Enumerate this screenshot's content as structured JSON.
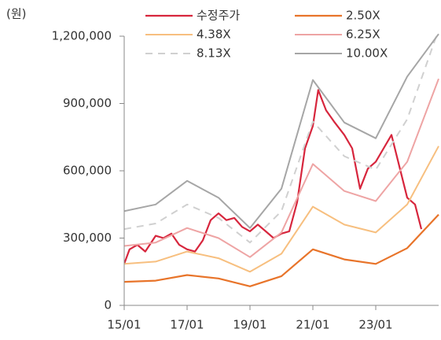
{
  "chart_data": {
    "type": "line",
    "y_label": "(원)",
    "xlim": [
      2015,
      2025
    ],
    "xticks": [
      {
        "value": 2015,
        "label": "15/01"
      },
      {
        "value": 2017,
        "label": "17/01"
      },
      {
        "value": 2019,
        "label": "19/01"
      },
      {
        "value": 2021,
        "label": "21/01"
      },
      {
        "value": 2023,
        "label": "23/01"
      }
    ],
    "ylim": [
      0,
      1200000
    ],
    "yticks": [
      0,
      {
        "value": 300000,
        "label": "300,000"
      },
      {
        "value": 600000,
        "label": "600,000"
      },
      {
        "value": 900000,
        "label": "900,000"
      },
      {
        "value": 1200000,
        "label": "1,200,000"
      }
    ],
    "series": [
      {
        "name": "수정주가",
        "color": "#d7263d",
        "width": 2.2,
        "style": "solid",
        "x": [
          2015.0,
          2015.17,
          2015.42,
          2015.67,
          2016.0,
          2016.25,
          2016.5,
          2016.75,
          2017.0,
          2017.25,
          2017.5,
          2017.75,
          2018.0,
          2018.25,
          2018.5,
          2018.75,
          2019.0,
          2019.25,
          2019.5,
          2019.75,
          2020.0,
          2020.25,
          2020.5,
          2020.75,
          2021.0,
          2021.17,
          2021.42,
          2021.67,
          2022.0,
          2022.25,
          2022.5,
          2022.75,
          2023.0,
          2023.25,
          2023.5,
          2023.75,
          2024.0,
          2024.25,
          2024.45
        ],
        "values": [
          185000,
          250000,
          270000,
          240000,
          310000,
          300000,
          320000,
          270000,
          250000,
          240000,
          290000,
          380000,
          410000,
          380000,
          390000,
          350000,
          330000,
          360000,
          330000,
          300000,
          320000,
          330000,
          460000,
          700000,
          800000,
          960000,
          870000,
          820000,
          760000,
          700000,
          520000,
          610000,
          640000,
          700000,
          760000,
          620000,
          480000,
          450000,
          340000
        ]
      },
      {
        "name": "2.50X",
        "color": "#e8742a",
        "width": 2.2,
        "style": "solid",
        "x": [
          2015,
          2016,
          2017,
          2018,
          2019,
          2020,
          2021,
          2022,
          2023,
          2024,
          2025
        ],
        "values": [
          105000,
          110000,
          135000,
          120000,
          85000,
          130000,
          250000,
          205000,
          185000,
          255000,
          405000
        ]
      },
      {
        "name": "4.38X",
        "color": "#f7bf7f",
        "width": 2,
        "style": "solid",
        "x": [
          2015,
          2016,
          2017,
          2018,
          2019,
          2020,
          2021,
          2022,
          2023,
          2024,
          2025
        ],
        "values": [
          185000,
          195000,
          240000,
          210000,
          150000,
          230000,
          440000,
          360000,
          325000,
          450000,
          710000
        ]
      },
      {
        "name": "6.25X",
        "color": "#eea4a4",
        "width": 2,
        "style": "solid",
        "x": [
          2015,
          2016,
          2017,
          2018,
          2019,
          2020,
          2021,
          2022,
          2023,
          2024,
          2025
        ],
        "values": [
          265000,
          280000,
          345000,
          300000,
          215000,
          325000,
          630000,
          510000,
          465000,
          640000,
          1010000
        ]
      },
      {
        "name": "8.13X",
        "color": "#d0d0d0",
        "width": 2,
        "style": "dashed",
        "x": [
          2015,
          2016,
          2017,
          2018,
          2019,
          2020,
          2021,
          2022,
          2023,
          2024,
          2025
        ],
        "values": [
          340000,
          365000,
          450000,
          390000,
          280000,
          420000,
          820000,
          665000,
          605000,
          830000,
          1230000
        ]
      },
      {
        "name": "10.00X",
        "color": "#a6a6a6",
        "width": 2,
        "style": "solid",
        "x": [
          2015,
          2016,
          2017,
          2018,
          2019,
          2020,
          2021,
          2022,
          2023,
          2024,
          2025
        ],
        "values": [
          420000,
          450000,
          555000,
          480000,
          345000,
          520000,
          1005000,
          815000,
          745000,
          1020000,
          1210000
        ]
      }
    ]
  }
}
